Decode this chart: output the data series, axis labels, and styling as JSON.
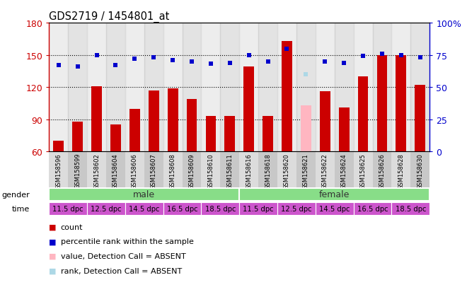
{
  "title": "GDS2719 / 1454801_at",
  "samples": [
    "GSM158596",
    "GSM158599",
    "GSM158602",
    "GSM158604",
    "GSM158606",
    "GSM158607",
    "GSM158608",
    "GSM158609",
    "GSM158610",
    "GSM158611",
    "GSM158616",
    "GSM158618",
    "GSM158620",
    "GSM158621",
    "GSM158622",
    "GSM158624",
    "GSM158625",
    "GSM158626",
    "GSM158628",
    "GSM158630"
  ],
  "bar_values": [
    70,
    88,
    121,
    85,
    100,
    117,
    119,
    109,
    93,
    93,
    139,
    93,
    163,
    103,
    116,
    101,
    130,
    150,
    150,
    122
  ],
  "bar_absent": [
    false,
    false,
    false,
    false,
    false,
    false,
    false,
    false,
    false,
    false,
    false,
    false,
    false,
    true,
    false,
    false,
    false,
    false,
    false,
    false
  ],
  "percentile_values": [
    67,
    66,
    75,
    67,
    72,
    73,
    71,
    70,
    68,
    69,
    75,
    70,
    80,
    60,
    70,
    69,
    74,
    76,
    75,
    73
  ],
  "percentile_absent": [
    false,
    false,
    false,
    false,
    false,
    false,
    false,
    false,
    false,
    false,
    false,
    false,
    false,
    true,
    false,
    false,
    false,
    false,
    false,
    false
  ],
  "ylim_left": [
    60,
    180
  ],
  "ylim_right": [
    0,
    100
  ],
  "yticks_left": [
    60,
    90,
    120,
    150,
    180
  ],
  "yticks_right": [
    0,
    25,
    50,
    75,
    100
  ],
  "ytick_right_labels": [
    "0",
    "25",
    "50",
    "75",
    "100%"
  ],
  "bar_color": "#CC0000",
  "bar_absent_color": "#FFB6C1",
  "dot_color": "#0000CC",
  "dot_absent_color": "#ADD8E6",
  "bg_color": "#FFFFFF",
  "gender_color": "#88DD88",
  "time_color": "#CC55CC",
  "time_ranges": [
    [
      0,
      2,
      "11.5 dpc"
    ],
    [
      2,
      4,
      "12.5 dpc"
    ],
    [
      4,
      6,
      "14.5 dpc"
    ],
    [
      6,
      8,
      "16.5 dpc"
    ],
    [
      8,
      10,
      "18.5 dpc"
    ],
    [
      10,
      12,
      "11.5 dpc"
    ],
    [
      12,
      14,
      "12.5 dpc"
    ],
    [
      14,
      16,
      "14.5 dpc"
    ],
    [
      16,
      18,
      "16.5 dpc"
    ],
    [
      18,
      20,
      "18.5 dpc"
    ]
  ],
  "gender_male_count": 10,
  "legend_items": [
    {
      "label": "count",
      "color": "#CC0000"
    },
    {
      "label": "percentile rank within the sample",
      "color": "#0000CC"
    },
    {
      "label": "value, Detection Call = ABSENT",
      "color": "#FFB6C1"
    },
    {
      "label": "rank, Detection Call = ABSENT",
      "color": "#ADD8E6"
    }
  ],
  "sample_bg_even": "#DCDCDC",
  "sample_bg_odd": "#C8C8C8"
}
